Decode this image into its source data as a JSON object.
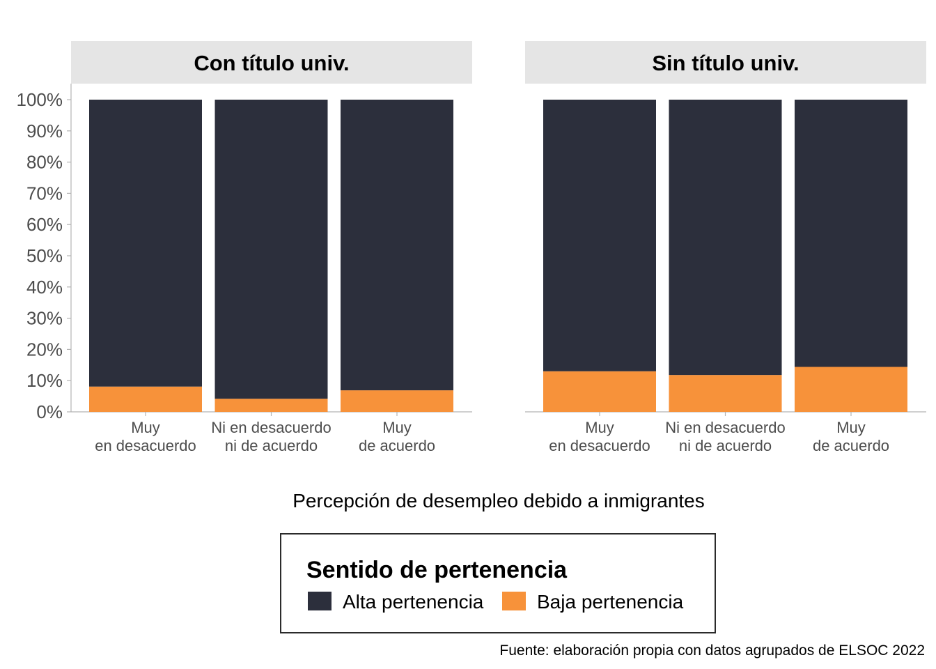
{
  "chart_data": {
    "type": "bar",
    "stacked": true,
    "percent": true,
    "facets": [
      "Con título univ.",
      "Sin título univ."
    ],
    "categories": [
      [
        "Muy",
        "en desacuerdo"
      ],
      [
        "Ni en desacuerdo",
        "ni de acuerdo"
      ],
      [
        "Muy",
        "de acuerdo"
      ]
    ],
    "series": [
      {
        "name": "Baja pertenencia",
        "color": "#f7923a",
        "values": [
          [
            8.1,
            4.2,
            6.9
          ],
          [
            13.0,
            11.8,
            14.4
          ]
        ]
      },
      {
        "name": "Alta pertenencia",
        "color": "#2c2f3c",
        "values": [
          [
            91.9,
            95.8,
            93.1
          ],
          [
            87.0,
            88.2,
            85.6
          ]
        ]
      }
    ],
    "ylim": [
      0,
      100
    ],
    "yticks": [
      "0%",
      "10%",
      "20%",
      "30%",
      "40%",
      "50%",
      "60%",
      "70%",
      "80%",
      "90%",
      "100%"
    ],
    "xlabel": "Percepción de desempleo debido a inmigrantes",
    "legend": {
      "title": "Sentido de pertenencia",
      "items": [
        {
          "label": "Alta pertenencia",
          "color": "#2c2f3c"
        },
        {
          "label": "Baja pertenencia",
          "color": "#f7923a"
        }
      ],
      "position": "bottom"
    },
    "caption": "Fuente: elaboración propia con datos agrupados de ELSOC 2022",
    "grid": false,
    "strip_color": "#e5e5e5"
  }
}
